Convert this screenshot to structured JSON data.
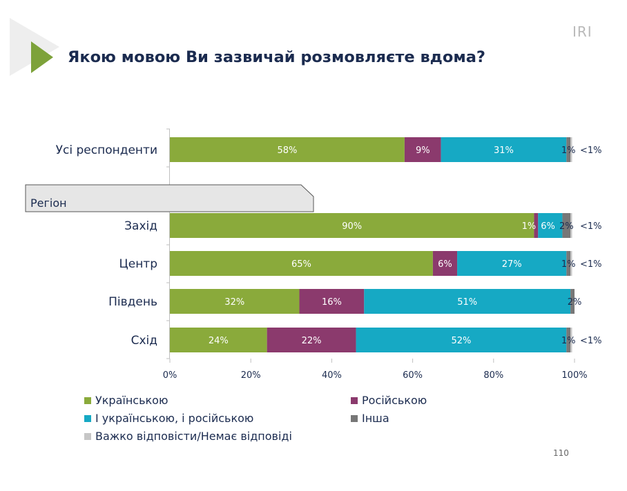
{
  "header": {
    "logo": "IRI",
    "title": "Якою мовою Ви зазвичай розмовляєте вдома?",
    "page_number": "110"
  },
  "colors": {
    "ukrainian": "#8aaa3b",
    "russian": "#8b3a6d",
    "both": "#16a9c4",
    "other": "#777777",
    "hard_to_say": "#c6c6c6",
    "accent_arrow": "#7da23a"
  },
  "chart_data": {
    "type": "bar",
    "orientation": "horizontal",
    "stacked": true,
    "title": "Якою мовою Ви зазвичай розмовляєте вдома?",
    "xlim": [
      0,
      100
    ],
    "x_ticks": [
      "0%",
      "20%",
      "40%",
      "60%",
      "80%",
      "100%"
    ],
    "group_header": "Регіон",
    "categories": [
      "Усі респонденти",
      "Захід",
      "Центр",
      "Південь",
      "Схід"
    ],
    "series": [
      {
        "name": "Українською",
        "key": "ukrainian",
        "values": [
          58,
          90,
          65,
          32,
          24
        ],
        "labels": [
          "58%",
          "90%",
          "65%",
          "32%",
          "24%"
        ]
      },
      {
        "name": "Російською",
        "key": "russian",
        "values": [
          9,
          1,
          6,
          16,
          22
        ],
        "labels": [
          "9%",
          "1%",
          "6%",
          "16%",
          "22%"
        ]
      },
      {
        "name": "І українською, і російською",
        "key": "both",
        "values": [
          31,
          6,
          27,
          51,
          52
        ],
        "labels": [
          "31%",
          "6%",
          "27%",
          "51%",
          "52%"
        ]
      },
      {
        "name": "Інша",
        "key": "other",
        "values": [
          1,
          2,
          1,
          2,
          1
        ],
        "labels": [
          "1%",
          "2%",
          "1%",
          "2%",
          "1%"
        ]
      },
      {
        "name": "Важко відповісти/Немає відповіді",
        "key": "hard_to_say",
        "values": [
          0.4,
          0.4,
          0.4,
          0,
          0.4
        ],
        "labels": [
          "<1%",
          "<1%",
          "<1%",
          "",
          "<1%"
        ]
      }
    ]
  }
}
